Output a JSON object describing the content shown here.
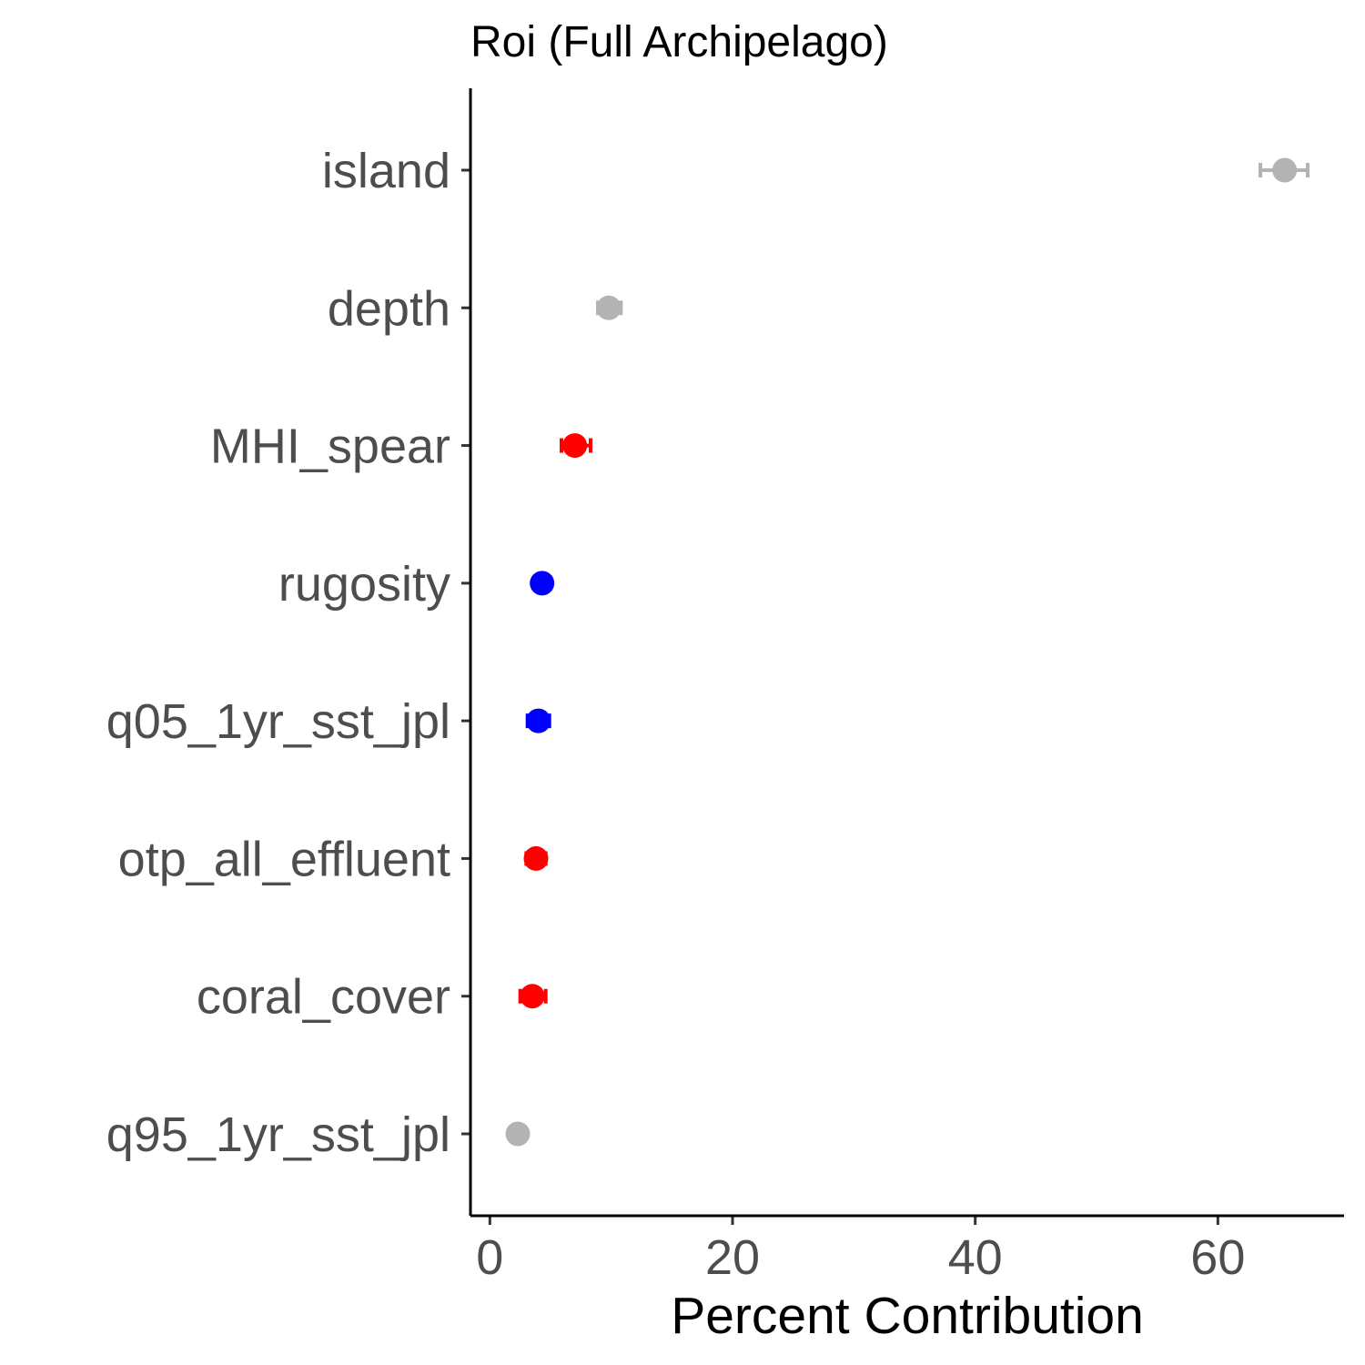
{
  "chart_data": {
    "type": "scatter",
    "title": "Roi (Full Archipelago)",
    "xlabel": "Percent Contribution",
    "ylabel": "",
    "xlim": [
      -1.6,
      70.4
    ],
    "xticks": [
      0,
      20,
      40,
      60
    ],
    "xtick_labels": [
      "0",
      "20",
      "40",
      "60"
    ],
    "grid": false,
    "legend": "none",
    "categories": [
      "island",
      "depth",
      "MHI_spear",
      "rugosity",
      "q05_1yr_sst_jpl",
      "otp_all_effluent",
      "coral_cover",
      "q95_1yr_sst_jpl"
    ],
    "points": [
      {
        "label": "island",
        "value": 65.5,
        "low": 63.5,
        "high": 67.4,
        "color": "#b3b3b3"
      },
      {
        "label": "depth",
        "value": 9.8,
        "low": 8.9,
        "high": 10.8,
        "color": "#b3b3b3"
      },
      {
        "label": "MHI_spear",
        "value": 7.0,
        "low": 5.9,
        "high": 8.3,
        "color": "#ff0000"
      },
      {
        "label": "rugosity",
        "value": 4.3,
        "low": 3.7,
        "high": 5.0,
        "color": "#0000ff"
      },
      {
        "label": "q05_1yr_sst_jpl",
        "value": 4.0,
        "low": 3.1,
        "high": 4.9,
        "color": "#0000ff"
      },
      {
        "label": "otp_all_effluent",
        "value": 3.8,
        "low": 3.0,
        "high": 4.6,
        "color": "#ff0000"
      },
      {
        "label": "coral_cover",
        "value": 3.5,
        "low": 2.5,
        "high": 4.6,
        "color": "#ff0000"
      },
      {
        "label": "q95_1yr_sst_jpl",
        "value": 2.3,
        "low": 1.8,
        "high": 2.8,
        "color": "#b3b3b3"
      }
    ]
  }
}
